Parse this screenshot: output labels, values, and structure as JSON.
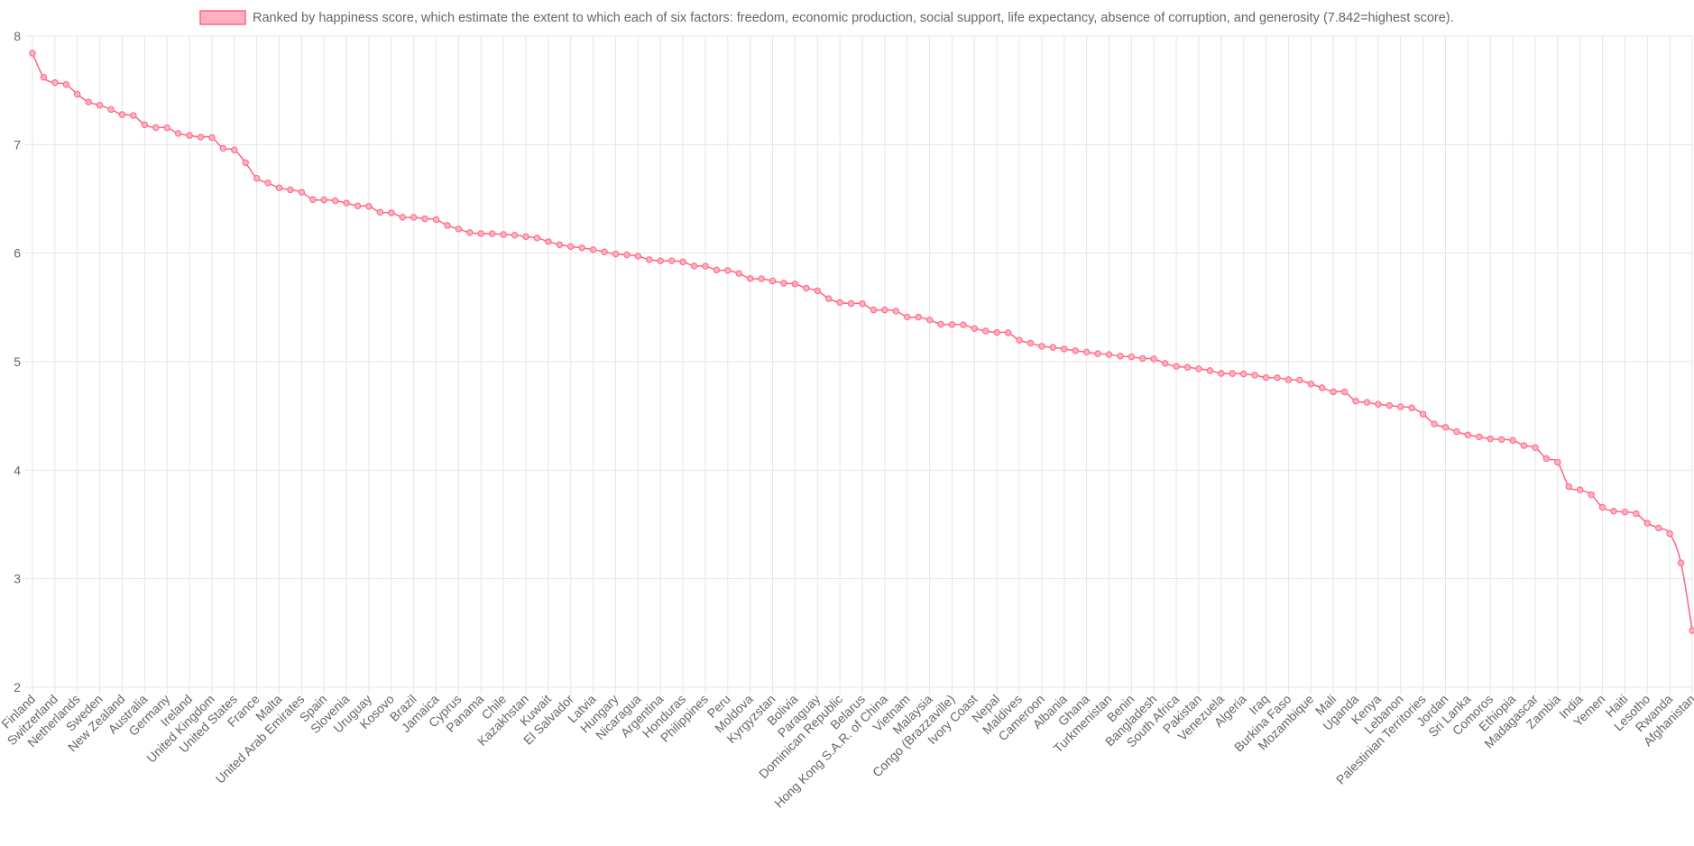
{
  "chart_data": {
    "type": "line",
    "title": "",
    "xlabel": "",
    "ylabel": "",
    "ylim": [
      2,
      8
    ],
    "yticks": [
      2,
      3,
      4,
      5,
      6,
      7,
      8
    ],
    "grid": true,
    "legend_position": "top",
    "series": [
      {
        "name": "Ranked by happiness score, which estimate the extent to which each of six factors: freedom, economic production, social support, life expectancy, absence of corruption, and generosity (7.842=highest score).",
        "color": "#ff6384",
        "fill_color": "#ffb1c1"
      }
    ],
    "labels": [
      "Finland",
      "",
      "Switzerland",
      "",
      "Netherlands",
      "",
      "Sweden",
      "",
      "New Zealand",
      "",
      "Australia",
      "",
      "Germany",
      "",
      "Ireland",
      "",
      "United Kingdom",
      "",
      "United States",
      "",
      "France",
      "",
      "Malta",
      "",
      "United Arab Emirates",
      "",
      "Spain",
      "",
      "Slovenia",
      "",
      "Uruguay",
      "",
      "Kosovo",
      "",
      "Brazil",
      "",
      "Jamaica",
      "",
      "Cyprus",
      "",
      "Panama",
      "",
      "Chile",
      "",
      "Kazakhstan",
      "",
      "Kuwait",
      "",
      "El Salvador",
      "",
      "Latvia",
      "",
      "Hungary",
      "",
      "Nicaragua",
      "",
      "Argentina",
      "",
      "Honduras",
      "",
      "Philippines",
      "",
      "Peru",
      "",
      "Moldova",
      "",
      "Kyrgyzstan",
      "",
      "Bolivia",
      "",
      "Paraguay",
      "",
      "Dominican Republic",
      "",
      "Belarus",
      "",
      "Hong Kong S.A.R. of China",
      "",
      "Vietnam",
      "",
      "Malaysia",
      "",
      "Congo (Brazzaville)",
      "",
      "Ivory Coast",
      "",
      "Nepal",
      "",
      "Maldives",
      "",
      "Cameroon",
      "",
      "Albania",
      "",
      "Ghana",
      "",
      "Turkmenistan",
      "",
      "Benin",
      "",
      "Bangladesh",
      "",
      "South Africa",
      "",
      "Pakistan",
      "",
      "Venezuela",
      "",
      "Algeria",
      "",
      "Iraq",
      "",
      "Burkina Faso",
      "",
      "Mozambique",
      "",
      "Mali",
      "",
      "Uganda",
      "",
      "Kenya",
      "",
      "Lebanon",
      "",
      "Palestinian Territories",
      "",
      "Jordan",
      "",
      "Sri Lanka",
      "",
      "Comoros",
      "",
      "Ethiopia",
      "",
      "Madagascar",
      "",
      "Zambia",
      "",
      "India",
      "",
      "Yemen",
      "",
      "Haiti",
      "",
      "Lesotho",
      "",
      "Rwanda",
      "",
      "Afghanistan"
    ],
    "values": [
      7.842,
      7.62,
      7.571,
      7.554,
      7.464,
      7.392,
      7.363,
      7.324,
      7.277,
      7.268,
      7.183,
      7.157,
      7.155,
      7.103,
      7.085,
      7.069,
      7.064,
      6.965,
      6.951,
      6.834,
      6.69,
      6.647,
      6.602,
      6.584,
      6.561,
      6.494,
      6.491,
      6.483,
      6.461,
      6.435,
      6.431,
      6.377,
      6.372,
      6.331,
      6.33,
      6.317,
      6.309,
      6.255,
      6.223,
      6.189,
      6.18,
      6.179,
      6.172,
      6.166,
      6.152,
      6.14,
      6.106,
      6.078,
      6.061,
      6.049,
      6.032,
      6.012,
      5.992,
      5.985,
      5.972,
      5.94,
      5.929,
      5.929,
      5.919,
      5.882,
      5.88,
      5.845,
      5.84,
      5.813,
      5.766,
      5.764,
      5.744,
      5.723,
      5.716,
      5.677,
      5.653,
      5.581,
      5.545,
      5.536,
      5.534,
      5.477,
      5.477,
      5.466,
      5.411,
      5.41,
      5.384,
      5.345,
      5.342,
      5.339,
      5.306,
      5.283,
      5.269,
      5.266,
      5.198,
      5.171,
      5.142,
      5.132,
      5.117,
      5.101,
      5.088,
      5.074,
      5.066,
      5.051,
      5.045,
      5.03,
      5.025,
      4.984,
      4.956,
      4.948,
      4.934,
      4.918,
      4.892,
      4.891,
      4.887,
      4.875,
      4.854,
      4.852,
      4.834,
      4.83,
      4.794,
      4.759,
      4.723,
      4.721,
      4.636,
      4.625,
      4.607,
      4.596,
      4.584,
      4.574,
      4.517,
      4.426,
      4.395,
      4.355,
      4.325,
      4.308,
      4.289,
      4.283,
      4.275,
      4.227,
      4.208,
      4.107,
      4.073,
      3.849,
      3.819,
      3.775,
      3.658,
      3.623,
      3.615,
      3.6,
      3.512,
      3.467,
      3.415,
      3.145,
      2.523
    ]
  }
}
